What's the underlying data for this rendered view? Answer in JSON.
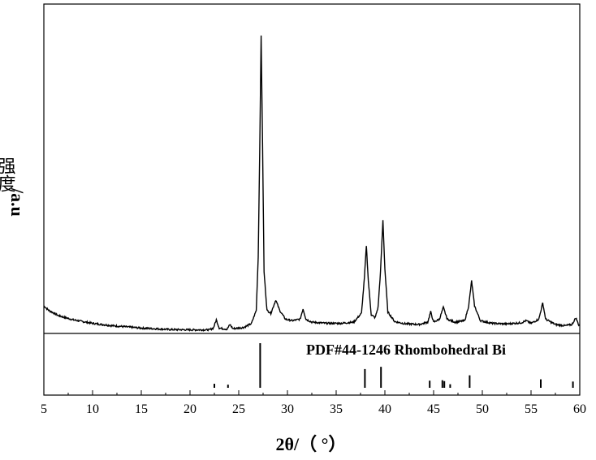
{
  "chart_data": {
    "type": "line",
    "xlabel": "2θ/（ °）",
    "ylabel_cn": "强度",
    "ylabel_unit": "/a.u",
    "xlim": [
      5,
      60
    ],
    "xticks": [
      5,
      10,
      15,
      20,
      25,
      30,
      35,
      40,
      45,
      50,
      55,
      60
    ],
    "grid": false,
    "reference_label": "PDF#44-1246  Rhombohedral Bi",
    "series": [
      {
        "kind": "xrd-pattern",
        "y_scale": "relative",
        "points": [
          [
            5.0,
            0.085
          ],
          [
            5.5,
            0.07
          ],
          [
            6.5,
            0.052
          ],
          [
            8,
            0.038
          ],
          [
            10,
            0.026
          ],
          [
            12,
            0.018
          ],
          [
            15,
            0.01
          ],
          [
            18,
            0.005
          ],
          [
            20,
            0.004
          ],
          [
            22,
            0.004
          ],
          [
            22.4,
            0.01
          ],
          [
            22.7,
            0.038
          ],
          [
            23.0,
            0.01
          ],
          [
            23.8,
            0.006
          ],
          [
            24.1,
            0.022
          ],
          [
            24.4,
            0.008
          ],
          [
            25.5,
            0.012
          ],
          [
            26.3,
            0.025
          ],
          [
            26.8,
            0.07
          ],
          [
            27.0,
            0.25
          ],
          [
            27.15,
            0.6
          ],
          [
            27.3,
            1.0
          ],
          [
            27.45,
            0.62
          ],
          [
            27.6,
            0.2
          ],
          [
            27.9,
            0.07
          ],
          [
            28.3,
            0.06
          ],
          [
            28.8,
            0.105
          ],
          [
            29.2,
            0.07
          ],
          [
            29.8,
            0.04
          ],
          [
            30.5,
            0.035
          ],
          [
            31.3,
            0.04
          ],
          [
            31.6,
            0.075
          ],
          [
            31.9,
            0.04
          ],
          [
            32.5,
            0.03
          ],
          [
            34,
            0.026
          ],
          [
            35.5,
            0.026
          ],
          [
            36.8,
            0.03
          ],
          [
            37.6,
            0.06
          ],
          [
            37.9,
            0.18
          ],
          [
            38.1,
            0.29
          ],
          [
            38.3,
            0.17
          ],
          [
            38.6,
            0.055
          ],
          [
            39.0,
            0.045
          ],
          [
            39.3,
            0.08
          ],
          [
            39.55,
            0.2
          ],
          [
            39.8,
            0.375
          ],
          [
            40.0,
            0.21
          ],
          [
            40.3,
            0.065
          ],
          [
            41,
            0.032
          ],
          [
            42,
            0.025
          ],
          [
            43.5,
            0.022
          ],
          [
            44.4,
            0.03
          ],
          [
            44.7,
            0.065
          ],
          [
            45.0,
            0.03
          ],
          [
            45.6,
            0.04
          ],
          [
            46.0,
            0.08
          ],
          [
            46.4,
            0.04
          ],
          [
            47.2,
            0.03
          ],
          [
            48.2,
            0.035
          ],
          [
            48.6,
            0.085
          ],
          [
            48.9,
            0.17
          ],
          [
            49.2,
            0.085
          ],
          [
            49.8,
            0.035
          ],
          [
            51,
            0.026
          ],
          [
            52.5,
            0.024
          ],
          [
            54,
            0.028
          ],
          [
            54.5,
            0.035
          ],
          [
            55,
            0.026
          ],
          [
            55.8,
            0.04
          ],
          [
            56.2,
            0.095
          ],
          [
            56.5,
            0.04
          ],
          [
            57.5,
            0.022
          ],
          [
            58.5,
            0.018
          ],
          [
            59.2,
            0.022
          ],
          [
            59.6,
            0.045
          ],
          [
            59.9,
            0.02
          ],
          [
            60,
            0.02
          ]
        ]
      }
    ],
    "reference_lines": [
      {
        "x": 22.5,
        "intensity": 0.09
      },
      {
        "x": 23.9,
        "intensity": 0.07
      },
      {
        "x": 27.2,
        "intensity": 1.0
      },
      {
        "x": 37.95,
        "intensity": 0.42
      },
      {
        "x": 39.6,
        "intensity": 0.47
      },
      {
        "x": 44.6,
        "intensity": 0.16
      },
      {
        "x": 45.9,
        "intensity": 0.17
      },
      {
        "x": 46.1,
        "intensity": 0.15
      },
      {
        "x": 46.7,
        "intensity": 0.08
      },
      {
        "x": 48.7,
        "intensity": 0.28
      },
      {
        "x": 56.0,
        "intensity": 0.19
      },
      {
        "x": 59.3,
        "intensity": 0.14
      }
    ]
  }
}
